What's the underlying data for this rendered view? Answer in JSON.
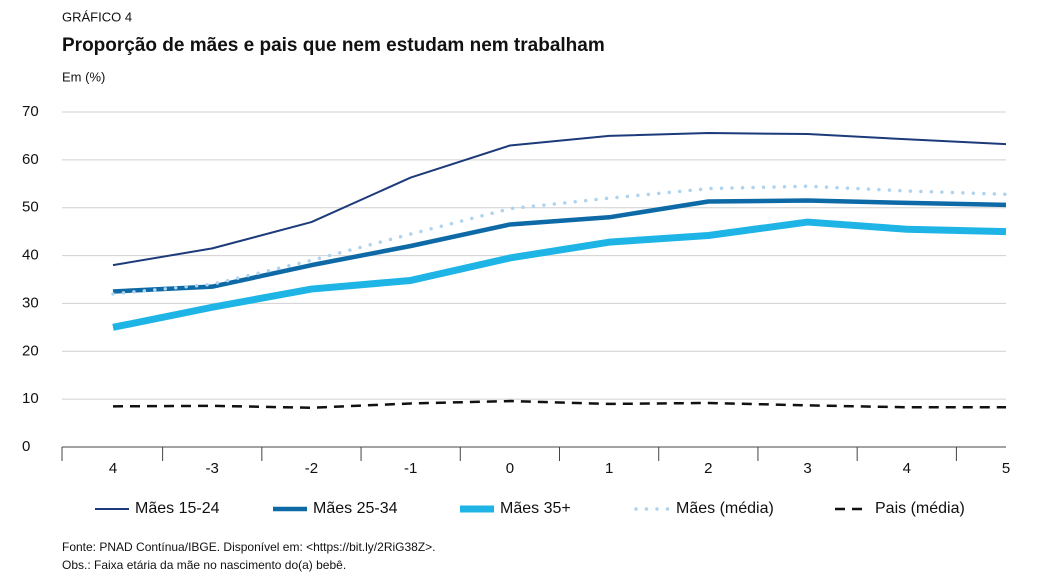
{
  "chart_data": {
    "type": "line",
    "kicker": "GRÁFICO 4",
    "title": "Proporção de mães e pais que nem estudam nem trabalham",
    "subtitle": "Em (%)",
    "source": "Fonte: PNAD Contínua/IBGE. Disponível em: <https://bit.ly/2RiG38Z>.",
    "note": "Obs.: Faixa etária da mãe no nascimento do(a) bebê.",
    "categories": [
      "4",
      "-3",
      "-2",
      "-1",
      "0",
      "1",
      "2",
      "3",
      "4",
      "5"
    ],
    "ylim": [
      0,
      70
    ],
    "yticks": [
      0,
      10,
      20,
      30,
      40,
      50,
      60,
      70
    ],
    "grid": true,
    "legend": "bottom",
    "series": [
      {
        "name": "Mães 15-24",
        "color": "#1d3a7a",
        "line_width": 2,
        "style": "solid",
        "values": [
          38,
          41.5,
          47,
          56.3,
          63,
          65,
          65.6,
          65.4,
          64.3,
          63.3
        ]
      },
      {
        "name": "Mães 25-34",
        "color": "#0d6aa6",
        "line_width": 4.5,
        "style": "solid",
        "values": [
          32.5,
          33.5,
          38,
          42,
          46.5,
          48,
          51.3,
          51.5,
          51,
          50.6
        ]
      },
      {
        "name": "Mães 35+",
        "color": "#1eb4e6",
        "line_width": 7,
        "style": "solid",
        "values": [
          25,
          29.2,
          33,
          34.8,
          39.5,
          42.8,
          44.2,
          47,
          45.5,
          45
        ]
      },
      {
        "name": "Mães (média)",
        "color": "#aed3ee",
        "line_width": 3.5,
        "style": "dotted",
        "values": [
          32,
          34,
          39,
          44.5,
          49.8,
          52,
          54,
          54.5,
          53.5,
          52.8
        ]
      },
      {
        "name": "Pais (média)",
        "color": "#111111",
        "line_width": 2.5,
        "style": "dashed",
        "values": [
          8.5,
          8.6,
          8.2,
          9.1,
          9.6,
          9,
          9.2,
          8.7,
          8.3,
          8.3
        ]
      }
    ]
  }
}
